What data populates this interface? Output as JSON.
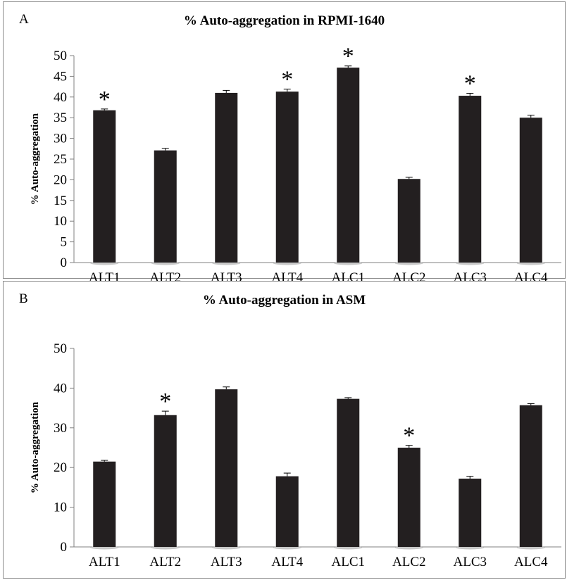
{
  "chart_data": [
    {
      "panel": "A",
      "type": "bar",
      "title": "% Auto-aggregation in RPMI-1640",
      "ylabel": "% Auto-aggregation",
      "xlabel": "",
      "categories": [
        "ALT1",
        "ALT2",
        "ALT3",
        "ALT4",
        "ALC1",
        "ALC2",
        "ALC3",
        "ALC4"
      ],
      "values": [
        36.8,
        27.1,
        41.0,
        41.3,
        47.1,
        20.2,
        40.3,
        35.0
      ],
      "errors": [
        0.3,
        0.5,
        0.6,
        0.6,
        0.4,
        0.4,
        0.6,
        0.6
      ],
      "significant": [
        true,
        false,
        false,
        true,
        true,
        false,
        true,
        false
      ],
      "significance_marker": "*",
      "ylim": [
        0,
        50
      ],
      "yticks": [
        "0",
        "5",
        "10",
        "15",
        "20",
        "25",
        "30",
        "35",
        "40",
        "45",
        "50"
      ],
      "grid": false,
      "bar_color": "#231f20"
    },
    {
      "panel": "B",
      "type": "bar",
      "title": "% Auto-aggregation in ASM",
      "ylabel": "% Auto-aggregation",
      "xlabel": "",
      "categories": [
        "ALT1",
        "ALT2",
        "ALT3",
        "ALT4",
        "ALC1",
        "ALC2",
        "ALC3",
        "ALC4"
      ],
      "values": [
        21.5,
        33.2,
        39.7,
        17.8,
        37.3,
        25.0,
        17.2,
        35.7
      ],
      "errors": [
        0.3,
        1.0,
        0.6,
        0.8,
        0.3,
        0.6,
        0.6,
        0.4
      ],
      "significant": [
        false,
        true,
        false,
        false,
        false,
        true,
        false,
        false
      ],
      "significance_marker": "*",
      "ylim": [
        0,
        50
      ],
      "yticks": [
        "0",
        "10",
        "20",
        "30",
        "40",
        "50"
      ],
      "grid": false,
      "bar_color": "#231f20"
    }
  ]
}
